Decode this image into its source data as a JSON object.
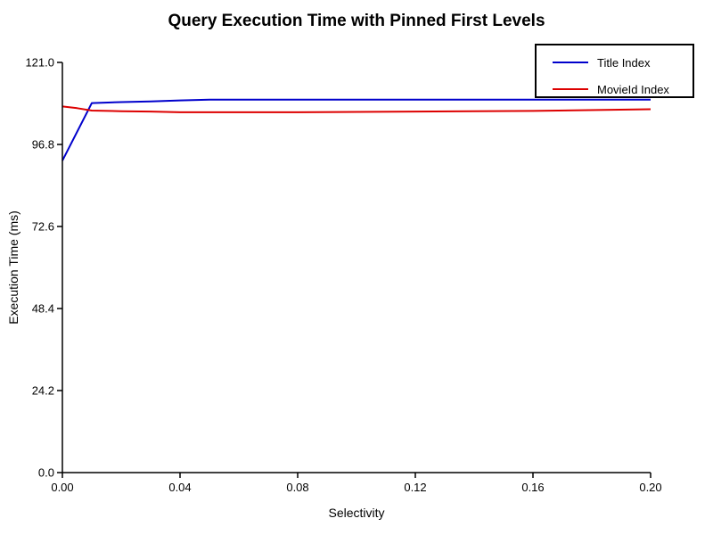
{
  "chart_data": {
    "type": "line",
    "title": "Query Execution Time with Pinned First Levels",
    "xlabel": "Selectivity",
    "ylabel": "Execution Time (ms)",
    "xlim": [
      0.0,
      0.2
    ],
    "ylim": [
      0.0,
      121.0
    ],
    "xticks": [
      "0.00",
      "0.04",
      "0.08",
      "0.12",
      "0.16",
      "0.20"
    ],
    "yticks": [
      "0.0",
      "24.2",
      "48.4",
      "72.6",
      "96.8",
      "121.0"
    ],
    "grid": false,
    "legend_position": "top-right",
    "series": [
      {
        "name": "Title Index",
        "color": "#0000cc",
        "x": [
          0.0,
          0.01,
          0.02,
          0.03,
          0.04,
          0.05,
          0.08,
          0.12,
          0.16,
          0.2
        ],
        "y": [
          92.0,
          109.0,
          109.3,
          109.5,
          109.8,
          110.0,
          110.0,
          110.0,
          110.0,
          110.0
        ]
      },
      {
        "name": "MovieId Index",
        "color": "#dd0000",
        "x": [
          0.0,
          0.005,
          0.01,
          0.02,
          0.03,
          0.04,
          0.08,
          0.12,
          0.16,
          0.2
        ],
        "y": [
          108.0,
          107.5,
          106.8,
          106.6,
          106.5,
          106.3,
          106.3,
          106.5,
          106.7,
          107.2
        ]
      }
    ]
  }
}
